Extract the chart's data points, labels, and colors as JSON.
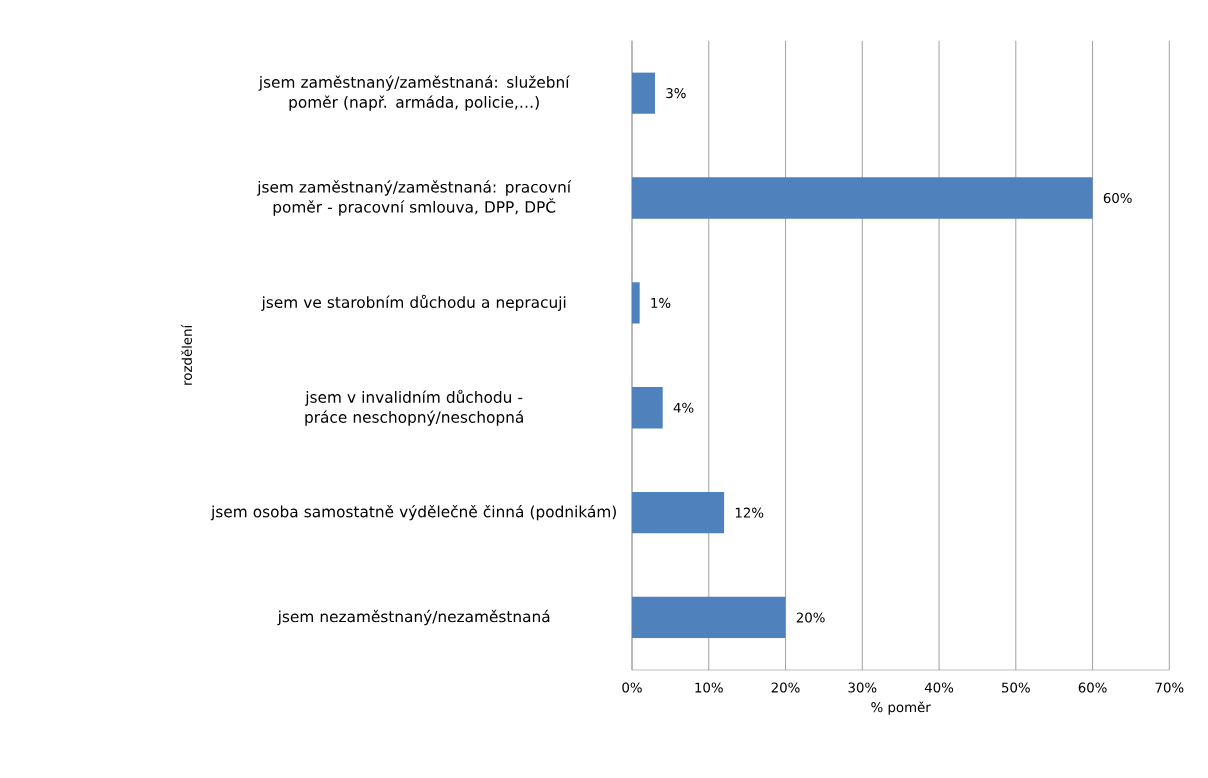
{
  "chart_data": {
    "type": "bar",
    "orientation": "horizontal",
    "xlabel": "% poměr",
    "ylabel": "rozdělení",
    "categories": [
      "jsem zaměstnaný/zaměstnaná: služební poměr (např. armáda, policie,…)",
      "jsem zaměstnaný/zaměstnaná: pracovní poměr - pracovní smlouva, DPP, DPČ",
      "jsem ve starobním důchodu a nepracuji",
      "jsem v invalidním důchodu - práce neschopný/neschopná",
      "jsem osoba samostatně výdělečně činná (podnikám)",
      "jsem nezaměstnaný/nezaměstnaná"
    ],
    "values": [
      3,
      60,
      1,
      4,
      12,
      20
    ],
    "value_labels": [
      "3%",
      "60%",
      "1%",
      "4%",
      "12%",
      "20%"
    ],
    "color": "#4f81bd",
    "xlim": [
      0,
      70
    ],
    "xticks": [
      {
        "value": 0,
        "label": "0%"
      },
      {
        "value": 10,
        "label": "10%"
      },
      {
        "value": 20,
        "label": "20%"
      },
      {
        "value": 30,
        "label": "30%"
      },
      {
        "value": 40,
        "label": "40%"
      },
      {
        "value": 50,
        "label": "50%"
      },
      {
        "value": 60,
        "label": "60%"
      },
      {
        "value": 70,
        "label": "70%"
      }
    ],
    "grid": "x"
  }
}
